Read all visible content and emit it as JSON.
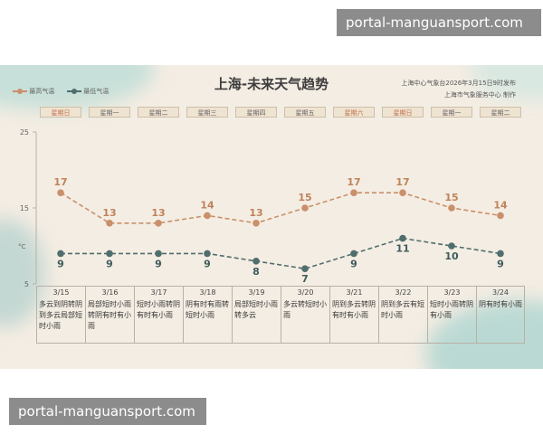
{
  "watermark": "portal-manguansport.com",
  "chart_data": {
    "type": "line",
    "title": "上海-未来天气趋势",
    "issuer": "上海中心气象台2026年3月15日9时发布",
    "issuer2": "上海市气象服务中心 制作",
    "ylabel": "°C",
    "ylim": [
      5,
      25
    ],
    "yticks": [
      25,
      15,
      5
    ],
    "legend_position": "top-left",
    "categories": [
      "3/15",
      "3/16",
      "3/17",
      "3/18",
      "3/19",
      "3/20",
      "3/21",
      "3/22",
      "3/23",
      "3/24"
    ],
    "weekdays": [
      "星期日",
      "星期一",
      "星期二",
      "星期三",
      "星期四",
      "星期五",
      "星期六",
      "星期日",
      "星期一",
      "星期二"
    ],
    "weekend": [
      true,
      false,
      false,
      false,
      false,
      false,
      true,
      true,
      false,
      false
    ],
    "series": [
      {
        "name": "最高气温",
        "color": "#c9906a",
        "values": [
          17,
          13,
          13,
          14,
          13,
          15,
          17,
          17,
          15,
          14
        ]
      },
      {
        "name": "最低气温",
        "color": "#4f6e6d",
        "values": [
          9,
          9,
          9,
          9,
          8,
          7,
          9,
          11,
          10,
          9
        ]
      }
    ],
    "conditions": [
      "多云到阴转阴到多云局部短时小雨",
      "局部短时小雨转阴有时有小雨",
      "短时小雨转阴有时有小雨",
      "阴有时有雨转短时小雨",
      "局部短时小雨转多云",
      "多云转短时小雨",
      "阴到多云转阴有时有小雨",
      "阴到多云有短时小雨",
      "短时小雨转阴有小雨",
      "阴有时有小雨"
    ]
  }
}
